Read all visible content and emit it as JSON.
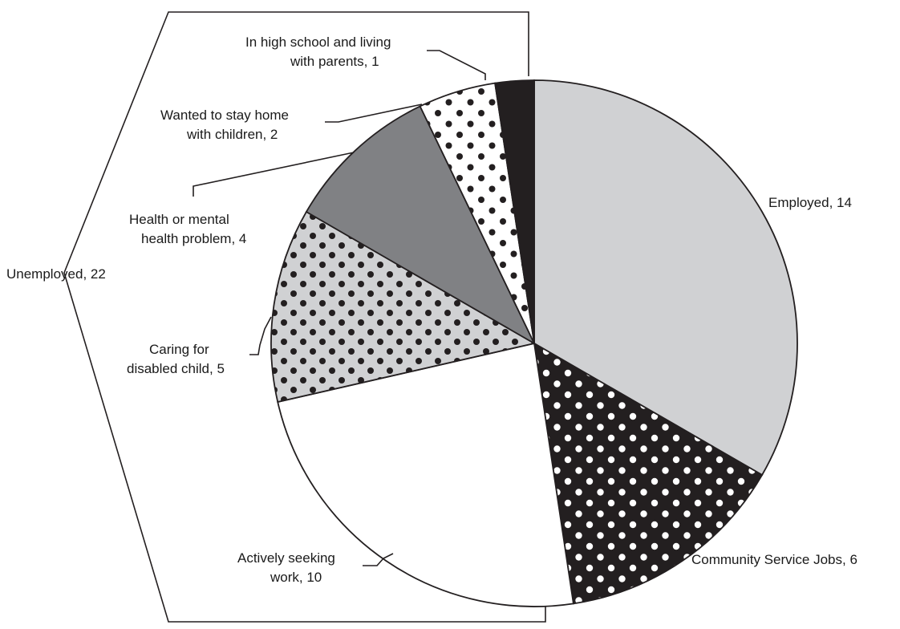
{
  "chart_data": {
    "type": "pie",
    "title": "",
    "slices": [
      {
        "label": "Employed",
        "value": 14,
        "fill": "#d0d1d3",
        "pattern": "none"
      },
      {
        "label": "Community Service Jobs",
        "value": 6,
        "fill": "#231f20",
        "pattern": "white-dots"
      },
      {
        "label": "Actively seeking work",
        "value": 10,
        "fill": "#ffffff",
        "pattern": "none"
      },
      {
        "label": "Caring for disabled child",
        "value": 5,
        "fill": "#d0d1d3",
        "pattern": "black-dots"
      },
      {
        "label": "Health or mental health problem",
        "value": 4,
        "fill": "#808184",
        "pattern": "none"
      },
      {
        "label": "Wanted to stay home with children",
        "value": 2,
        "fill": "#ffffff",
        "pattern": "black-dots"
      },
      {
        "label": "In high school and living with parents",
        "value": 1,
        "fill": "#231f20",
        "pattern": "none"
      }
    ],
    "labels": {
      "employed": "Employed, 14",
      "community": "Community Service Jobs, 6",
      "seeking": [
        "Actively seeking",
        "work, 10"
      ],
      "caring": [
        "Caring for",
        "disabled child, 5"
      ],
      "health": [
        "Health or mental",
        "health problem, 4"
      ],
      "stay_home": [
        "Wanted to stay home",
        "with children, 2"
      ],
      "high_school": [
        "In high school and living",
        "with parents, 1"
      ],
      "unemployed": "Unemployed, 22"
    },
    "group": {
      "label": "Unemployed",
      "value": 22
    },
    "colors": {
      "outline": "#231f20",
      "light_gray": "#d0d1d3",
      "mid_gray": "#808184",
      "black": "#231f20",
      "white": "#ffffff"
    }
  }
}
